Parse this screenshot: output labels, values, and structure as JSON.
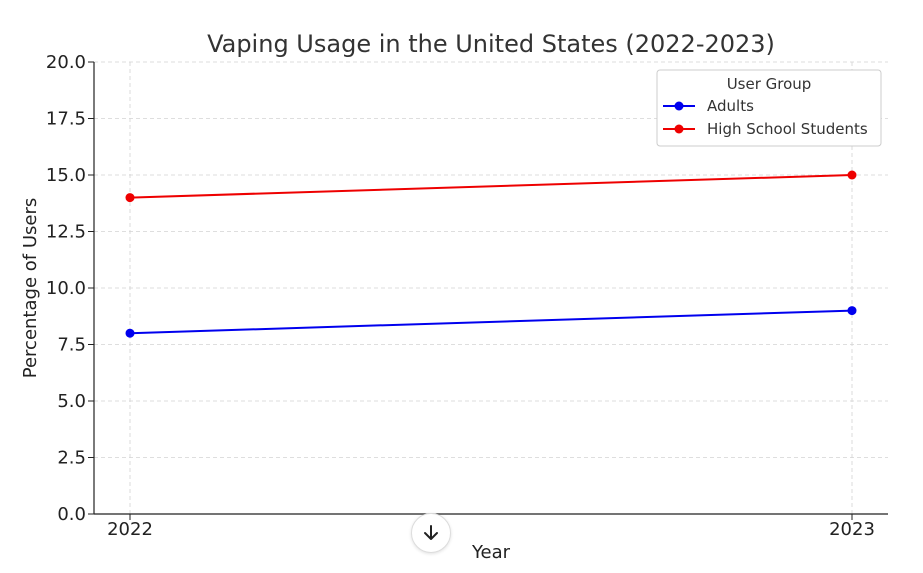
{
  "chart_data": {
    "type": "line",
    "title": "Vaping Usage in the United States (2022-2023)",
    "xlabel": "Year",
    "ylabel": "Percentage of Users",
    "x": [
      2022,
      2023
    ],
    "x_tick_labels": [
      "2022",
      "2023"
    ],
    "ylim": [
      0,
      20
    ],
    "y_ticks": [
      0,
      2.5,
      5,
      7.5,
      10,
      12.5,
      15,
      17.5,
      20
    ],
    "y_tick_labels": [
      "0.0",
      "2.5",
      "5.0",
      "7.5",
      "10.0",
      "12.5",
      "15.0",
      "17.5",
      "20.0"
    ],
    "grid": true,
    "legend": {
      "title": "User Group",
      "placement": "top-right"
    },
    "series": [
      {
        "name": "Adults",
        "values": [
          8,
          9
        ],
        "color": "#0000ee",
        "marker": "circle"
      },
      {
        "name": "High School Students",
        "values": [
          14,
          15
        ],
        "color": "#ee0000",
        "marker": "circle"
      }
    ]
  },
  "scroll_button": {
    "icon": "arrow-down-icon"
  }
}
